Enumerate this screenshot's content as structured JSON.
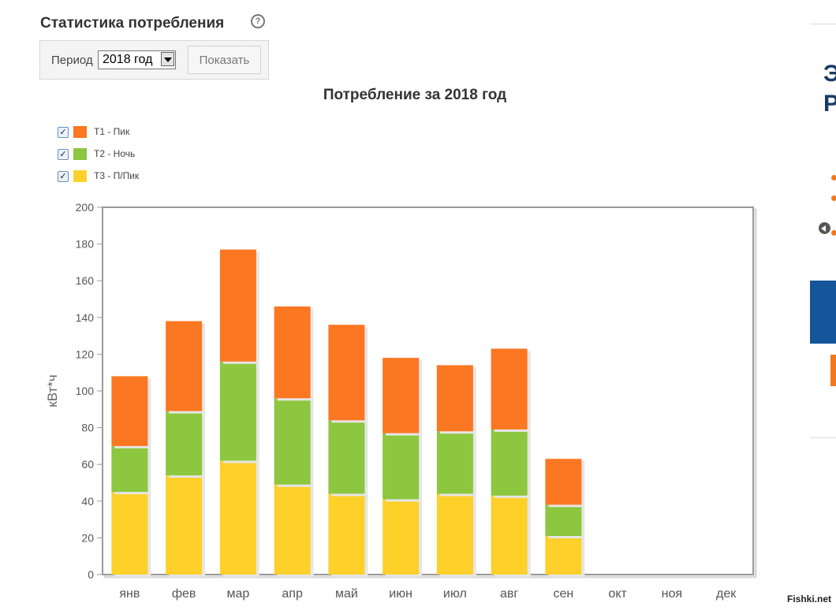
{
  "header": {
    "title": "Статистика потребления",
    "help_icon": "question-circle-icon"
  },
  "filter": {
    "period_label": "Период",
    "period_value": "2018 год",
    "show_button": "Показать"
  },
  "chart_data": {
    "type": "bar",
    "stacked": true,
    "title": "Потребление за 2018 год",
    "xlabel": "",
    "ylabel": "кВт*ч",
    "ylim": [
      0,
      200
    ],
    "yticks": [
      0,
      20,
      40,
      60,
      80,
      100,
      120,
      140,
      160,
      180,
      200
    ],
    "grid": false,
    "legend_position": "top-left",
    "categories": [
      "янв",
      "фев",
      "мар",
      "апр",
      "май",
      "июн",
      "июл",
      "авг",
      "сен",
      "окт",
      "ноя",
      "дек"
    ],
    "series": [
      {
        "name": "Т3 - П/Пик",
        "color": "#fdd02a",
        "values": [
          45,
          54,
          62,
          49,
          44,
          41,
          44,
          43,
          21,
          0,
          0,
          0
        ]
      },
      {
        "name": "Т2 - Ночь",
        "color": "#8dc63f",
        "values": [
          25,
          35,
          54,
          47,
          40,
          36,
          34,
          36,
          17,
          0,
          0,
          0
        ]
      },
      {
        "name": "Т1 - Пик",
        "color": "#fc7722",
        "values": [
          38,
          49,
          61,
          50,
          52,
          41,
          36,
          44,
          25,
          0,
          0,
          0
        ]
      }
    ],
    "legend": [
      {
        "label": "Т1 - Пик",
        "color": "#fc7722",
        "checked": true
      },
      {
        "label": "Т2 - Ночь",
        "color": "#8dc63f",
        "checked": true
      },
      {
        "label": "Т3 - П/Пик",
        "color": "#fdd02a",
        "checked": true
      }
    ]
  },
  "side_panel": {
    "text_1": "Э",
    "text_2": "Р"
  },
  "watermark": "Fishki.net"
}
